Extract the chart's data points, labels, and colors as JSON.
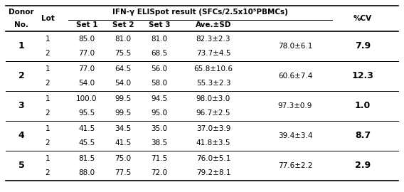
{
  "col_span_label": "IFN-γ ELISpot result (SFCs/2.5x10⁵PBMCs)",
  "rows": [
    {
      "donor": "1",
      "lot": "1",
      "set1": "85.0",
      "set2": "81.0",
      "set3": "81.0",
      "ave_sd": "82.3±2.3",
      "overall_ave": "78.0±6.1",
      "pcv": "7.9"
    },
    {
      "donor": "",
      "lot": "2",
      "set1": "77.0",
      "set2": "75.5",
      "set3": "68.5",
      "ave_sd": "73.7±4.5",
      "overall_ave": "",
      "pcv": ""
    },
    {
      "donor": "2",
      "lot": "1",
      "set1": "77.0",
      "set2": "64.5",
      "set3": "56.0",
      "ave_sd": "65.8±10.6",
      "overall_ave": "60.6±7.4",
      "pcv": "12.3"
    },
    {
      "donor": "",
      "lot": "2",
      "set1": "54.0",
      "set2": "54.0",
      "set3": "58.0",
      "ave_sd": "55.3±2.3",
      "overall_ave": "",
      "pcv": ""
    },
    {
      "donor": "3",
      "lot": "1",
      "set1": "100.0",
      "set2": "99.5",
      "set3": "94.5",
      "ave_sd": "98.0±3.0",
      "overall_ave": "97.3±0.9",
      "pcv": "1.0"
    },
    {
      "donor": "",
      "lot": "2",
      "set1": "95.5",
      "set2": "99.5",
      "set3": "95.0",
      "ave_sd": "96.7±2.5",
      "overall_ave": "",
      "pcv": ""
    },
    {
      "donor": "4",
      "lot": "1",
      "set1": "41.5",
      "set2": "34.5",
      "set3": "35.0",
      "ave_sd": "37.0±3.9",
      "overall_ave": "39.4±3.4",
      "pcv": "8.7"
    },
    {
      "donor": "",
      "lot": "2",
      "set1": "45.5",
      "set2": "41.5",
      "set3": "38.5",
      "ave_sd": "41.8±3.5",
      "overall_ave": "",
      "pcv": ""
    },
    {
      "donor": "5",
      "lot": "1",
      "set1": "81.5",
      "set2": "75.0",
      "set3": "71.5",
      "ave_sd": "76.0±5.1",
      "overall_ave": "77.6±2.2",
      "pcv": "2.9"
    },
    {
      "donor": "",
      "lot": "2",
      "set1": "88.0",
      "set2": "77.5",
      "set3": "72.0",
      "ave_sd": "79.2±8.1",
      "overall_ave": "",
      "pcv": ""
    }
  ],
  "figsize": [
    5.68,
    2.7
  ],
  "dpi": 100
}
